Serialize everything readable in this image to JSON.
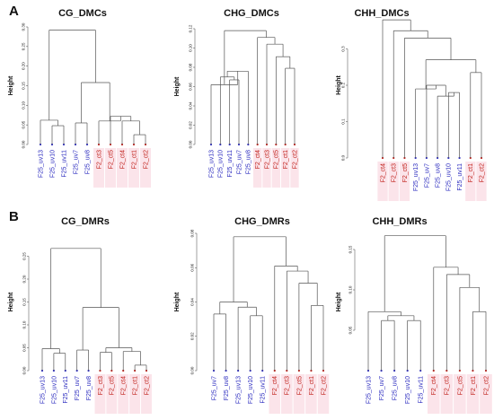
{
  "panel_letters": {
    "a": "A",
    "b": "B"
  },
  "colors": {
    "uv": "#2b2bbf",
    "ct": "#c0201a",
    "highlight": "#fbe4ea",
    "branch": "#555555"
  },
  "chart_data": [
    {
      "type": "dendrogram",
      "title": "CG_DMCs",
      "ylabel": "Height",
      "ylim": [
        0,
        0.3
      ],
      "yticks": [
        "0.00",
        "0.05",
        "0.10",
        "0.15",
        "0.20",
        "0.25",
        "0.30"
      ],
      "leaves": [
        "F25_uv13",
        "F25_uv10",
        "F25_uv11",
        "F25_uv7",
        "F25_uv8",
        "F2_ct3",
        "F2_ct5",
        "F2_ct4",
        "F2_ct1",
        "F2_ct2"
      ],
      "leaf_groups": [
        "uv",
        "uv",
        "uv",
        "uv",
        "uv",
        "ct",
        "ct",
        "ct",
        "ct",
        "ct"
      ],
      "merges": [
        [
          -2,
          -3,
          0.048
        ],
        [
          -9,
          -10,
          0.025
        ],
        [
          -8,
          2,
          0.06
        ],
        [
          -1,
          1,
          0.062
        ],
        [
          -7,
          3,
          0.072
        ],
        [
          -6,
          5,
          0.06
        ],
        [
          -4,
          -5,
          0.055
        ],
        [
          7,
          6,
          0.158
        ],
        [
          4,
          8,
          0.292
        ]
      ]
    },
    {
      "type": "dendrogram",
      "title": "CHG_DMCs",
      "ylabel": "Height",
      "ylim": [
        0,
        0.12
      ],
      "yticks": [
        "0.00",
        "0.02",
        "0.04",
        "0.06",
        "0.08",
        "0.10",
        "0.12"
      ],
      "leaves": [
        "F25_uv13",
        "F25_uv10",
        "F25_uv11",
        "F25_uv7",
        "F25_uv8",
        "F2_ct4",
        "F2_ct3",
        "F2_ct5",
        "F2_ct1",
        "F2_ct2"
      ],
      "leaf_groups": [
        "uv",
        "uv",
        "uv",
        "uv",
        "uv",
        "ct",
        "ct",
        "ct",
        "ct",
        "ct"
      ],
      "merges": [
        [
          -3,
          -4,
          0.067
        ],
        [
          -2,
          1,
          0.07
        ],
        [
          -9,
          -10,
          0.079
        ],
        [
          -8,
          3,
          0.091
        ],
        [
          -5,
          2,
          0.076
        ],
        [
          -7,
          4,
          0.104
        ],
        [
          -1,
          5,
          0.062
        ],
        [
          -6,
          6,
          0.111
        ],
        [
          7,
          8,
          0.118
        ]
      ]
    },
    {
      "type": "dendrogram",
      "title": "CHH_DMCs",
      "ylabel": "Height",
      "ylim": [
        0,
        0.4
      ],
      "yticks": [
        "0.0",
        "0.1",
        "0.2",
        "0.3"
      ],
      "leaves": [
        "F2_ct4",
        "F2_ct3",
        "F2_ct5",
        "F25_uv13",
        "F25_uv7",
        "F25_uv8",
        "F25_uv10",
        "F25_uv11",
        "F2_ct1",
        "F2_ct2"
      ],
      "leaf_groups": [
        "ct",
        "ct",
        "ct",
        "uv",
        "uv",
        "uv",
        "uv",
        "uv",
        "ct",
        "ct"
      ],
      "merges": [
        [
          -7,
          -8,
          0.18
        ],
        [
          -6,
          1,
          0.17
        ],
        [
          -5,
          2,
          0.2
        ],
        [
          -4,
          3,
          0.19
        ],
        [
          -9,
          -10,
          0.235
        ],
        [
          4,
          5,
          0.27
        ],
        [
          -3,
          6,
          0.33
        ],
        [
          -2,
          7,
          0.35
        ],
        [
          -1,
          8,
          0.38
        ]
      ]
    },
    {
      "type": "dendrogram",
      "title": "CG_DMRs",
      "ylabel": "Height",
      "ylim": [
        0,
        0.3
      ],
      "yticks": [
        "0.00",
        "0.05",
        "0.10",
        "0.15",
        "0.20",
        "0.25"
      ],
      "leaves": [
        "F25_uv13",
        "F25_uv10",
        "F25_uv11",
        "F25_uv7",
        "F25_uv8",
        "F2_ct3",
        "F2_ct5",
        "F2_ct4",
        "F2_ct1",
        "F2_ct2"
      ],
      "leaf_groups": [
        "uv",
        "uv",
        "uv",
        "uv",
        "uv",
        "ct",
        "ct",
        "ct",
        "ct",
        "ct"
      ],
      "merges": [
        [
          -2,
          -3,
          0.038
        ],
        [
          -1,
          1,
          0.048
        ],
        [
          -4,
          -5,
          0.045
        ],
        [
          -9,
          -10,
          0.012
        ],
        [
          -8,
          4,
          0.042
        ],
        [
          -6,
          -7,
          0.04
        ],
        [
          6,
          5,
          0.05
        ],
        [
          3,
          7,
          0.138
        ],
        [
          2,
          8,
          0.267
        ]
      ]
    },
    {
      "type": "dendrogram",
      "title": "CHG_DMRs",
      "ylabel": "Height",
      "ylim": [
        0,
        0.08
      ],
      "yticks": [
        "0.00",
        "0.02",
        "0.04",
        "0.06",
        "0.08"
      ],
      "leaves": [
        "F25_uv7",
        "F25_uv8",
        "F25_uv13",
        "F25_uv10",
        "F25_uv11",
        "F2_ct4",
        "F2_ct3",
        "F2_ct5",
        "F2_ct1",
        "F2_ct2"
      ],
      "leaf_groups": [
        "uv",
        "uv",
        "uv",
        "uv",
        "uv",
        "ct",
        "ct",
        "ct",
        "ct",
        "ct"
      ],
      "merges": [
        [
          -1,
          -2,
          0.033
        ],
        [
          -4,
          -5,
          0.032
        ],
        [
          -3,
          2,
          0.037
        ],
        [
          1,
          3,
          0.04
        ],
        [
          -9,
          -10,
          0.038
        ],
        [
          -8,
          5,
          0.051
        ],
        [
          -7,
          6,
          0.058
        ],
        [
          -6,
          7,
          0.061
        ],
        [
          4,
          8,
          0.078
        ]
      ]
    },
    {
      "type": "dendrogram",
      "title": "CHH_DMRs",
      "ylabel": "Height",
      "ylim": [
        0,
        0.17
      ],
      "yticks": [
        "0.05",
        "0.10",
        "0.15"
      ],
      "leaves": [
        "F25_uv13",
        "F25_uv7",
        "F25_uv8",
        "F25_uv10",
        "F25_uv11",
        "F2_ct4",
        "F2_ct3",
        "F2_ct5",
        "F2_ct1",
        "F2_ct2"
      ],
      "leaf_groups": [
        "uv",
        "uv",
        "uv",
        "uv",
        "uv",
        "ct",
        "ct",
        "ct",
        "ct",
        "ct"
      ],
      "merges": [
        [
          -4,
          -5,
          0.062
        ],
        [
          -2,
          -3,
          0.062
        ],
        [
          2,
          1,
          0.068
        ],
        [
          -1,
          3,
          0.073
        ],
        [
          -9,
          -10,
          0.073
        ],
        [
          -8,
          5,
          0.103
        ],
        [
          -7,
          6,
          0.119
        ],
        [
          -6,
          7,
          0.128
        ],
        [
          4,
          8,
          0.167
        ]
      ]
    }
  ]
}
